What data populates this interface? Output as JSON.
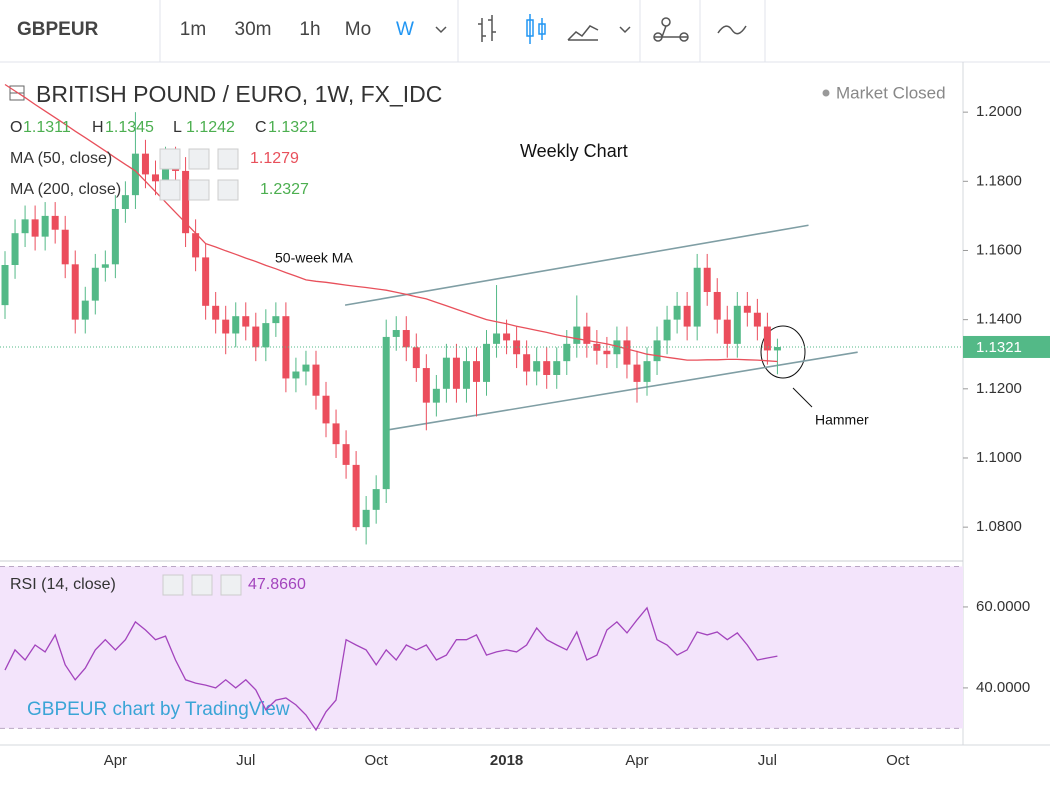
{
  "toolbar": {
    "symbol": "GBPEUR",
    "intervals": [
      "1m",
      "30m",
      "1h",
      "Mo",
      "W"
    ],
    "active_interval": 4
  },
  "chart_data": [
    {
      "type": "candlestick",
      "title": "BRITISH POUND / EURO, 1W, FX_IDC",
      "status": "Market Closed",
      "ohlc_labels": [
        "O",
        "H",
        "L",
        "C"
      ],
      "categories": [
        null,
        null,
        null,
        null,
        null,
        null,
        null,
        null,
        null,
        null,
        null,
        "Apr",
        null,
        null,
        null,
        null,
        null,
        null,
        null,
        null,
        null,
        null,
        null,
        null,
        "Jul",
        null,
        null,
        null,
        null,
        null,
        null,
        null,
        null,
        null,
        null,
        null,
        null,
        "Oct",
        null,
        null,
        null,
        null,
        null,
        null,
        null,
        null,
        null,
        null,
        null,
        null,
        "2018",
        null,
        null,
        null,
        null,
        null,
        null,
        null,
        null,
        null,
        null,
        null,
        null,
        "Apr",
        null,
        null,
        null,
        null,
        null,
        null,
        null,
        null,
        null,
        null,
        null,
        null,
        "Jul",
        null,
        null,
        null,
        null,
        null,
        null,
        null,
        null,
        null,
        null,
        null,
        null,
        "Oct",
        null,
        null,
        null,
        null,
        null,
        null
      ],
      "open": [
        1.1442,
        1.1558,
        1.165,
        1.169,
        1.164,
        1.17,
        1.166,
        1.156,
        1.14,
        1.1455,
        1.155,
        1.156,
        1.172,
        1.176,
        1.188,
        1.182,
        1.18,
        1.186,
        1.183,
        1.165,
        1.158,
        1.144,
        1.14,
        1.136,
        1.141,
        1.138,
        1.132,
        1.139,
        1.141,
        1.123,
        1.125,
        1.127,
        1.118,
        1.11,
        1.104,
        1.098,
        1.08,
        1.085,
        1.091,
        1.135,
        1.137,
        1.132,
        1.126,
        1.116,
        1.12,
        1.129,
        1.12,
        1.128,
        1.122,
        1.133,
        1.136,
        1.134,
        1.13,
        1.125,
        1.128,
        1.124,
        1.128,
        1.133,
        1.138,
        1.133,
        1.131,
        1.13,
        1.134,
        1.127,
        1.122,
        1.128,
        1.134,
        1.14,
        1.144,
        1.138,
        1.155,
        1.148,
        1.14,
        1.133,
        1.144,
        1.142,
        1.138,
        1.1311,
        null,
        null,
        null,
        null,
        null,
        null,
        null,
        null,
        null,
        null,
        null,
        null,
        null,
        null,
        null,
        null,
        null,
        null
      ],
      "high": [
        1.1598,
        1.169,
        1.173,
        1.173,
        1.174,
        1.174,
        1.17,
        1.16,
        1.1495,
        1.159,
        1.16,
        1.176,
        1.18,
        1.2,
        1.192,
        1.186,
        1.19,
        1.19,
        1.187,
        1.169,
        1.162,
        1.148,
        1.144,
        1.145,
        1.145,
        1.142,
        1.143,
        1.145,
        1.145,
        1.129,
        1.131,
        1.131,
        1.122,
        1.114,
        1.108,
        1.102,
        1.089,
        1.095,
        1.14,
        1.141,
        1.141,
        1.136,
        1.13,
        1.124,
        1.133,
        1.133,
        1.132,
        1.132,
        1.137,
        1.15,
        1.14,
        1.138,
        1.134,
        1.132,
        1.132,
        1.132,
        1.137,
        1.147,
        1.142,
        1.137,
        1.135,
        1.138,
        1.138,
        1.131,
        1.132,
        1.138,
        1.144,
        1.148,
        1.148,
        1.159,
        1.159,
        1.152,
        1.144,
        1.148,
        1.148,
        1.146,
        1.142,
        1.1345,
        null,
        null,
        null,
        null,
        null,
        null,
        null,
        null,
        null,
        null,
        null,
        null,
        null,
        null,
        null,
        null,
        null,
        null
      ],
      "low": [
        1.1402,
        1.1518,
        1.161,
        1.16,
        1.16,
        1.162,
        1.152,
        1.136,
        1.136,
        1.1415,
        1.151,
        1.152,
        1.168,
        1.172,
        1.178,
        1.176,
        1.176,
        1.179,
        1.161,
        1.154,
        1.14,
        1.136,
        1.13,
        1.132,
        1.134,
        1.128,
        1.128,
        1.135,
        1.119,
        1.119,
        1.121,
        1.114,
        1.106,
        1.1,
        1.094,
        1.079,
        1.075,
        1.081,
        1.087,
        1.131,
        1.128,
        1.122,
        1.108,
        1.112,
        1.116,
        1.116,
        1.116,
        1.112,
        1.118,
        1.129,
        1.13,
        1.126,
        1.121,
        1.121,
        1.12,
        1.12,
        1.124,
        1.129,
        1.129,
        1.127,
        1.126,
        1.126,
        1.123,
        1.116,
        1.118,
        1.124,
        1.13,
        1.136,
        1.134,
        1.134,
        1.144,
        1.136,
        1.129,
        1.129,
        1.138,
        1.134,
        1.127,
        1.1242,
        null,
        null,
        null,
        null,
        null,
        null,
        null,
        null,
        null,
        null,
        null,
        null,
        null,
        null,
        null,
        null,
        null,
        null
      ],
      "close": [
        1.1558,
        1.165,
        1.169,
        1.164,
        1.17,
        1.166,
        1.156,
        1.14,
        1.1455,
        1.155,
        1.156,
        1.172,
        1.176,
        1.188,
        1.182,
        1.18,
        1.186,
        1.183,
        1.165,
        1.158,
        1.144,
        1.14,
        1.136,
        1.141,
        1.138,
        1.132,
        1.139,
        1.141,
        1.123,
        1.125,
        1.127,
        1.118,
        1.11,
        1.104,
        1.098,
        1.08,
        1.085,
        1.091,
        1.135,
        1.137,
        1.132,
        1.126,
        1.116,
        1.12,
        1.129,
        1.12,
        1.128,
        1.122,
        1.133,
        1.136,
        1.134,
        1.13,
        1.125,
        1.128,
        1.124,
        1.128,
        1.133,
        1.138,
        1.133,
        1.131,
        1.13,
        1.134,
        1.127,
        1.122,
        1.128,
        1.134,
        1.14,
        1.144,
        1.138,
        1.155,
        1.148,
        1.14,
        1.133,
        1.144,
        1.142,
        1.138,
        1.1311,
        1.1321,
        null,
        null,
        null,
        null,
        null,
        null,
        null,
        null,
        null,
        null,
        null,
        null,
        null,
        null,
        null,
        null,
        null,
        null
      ],
      "up_color": "#53b987",
      "down_color": "#eb4d5c",
      "ylim": [
        1.0705,
        1.2145
      ],
      "yticks": [
        {
          "value": 1.08,
          "label": "1.0800"
        },
        {
          "value": 1.1,
          "label": "1.1000"
        },
        {
          "value": 1.12,
          "label": "1.1200"
        },
        {
          "value": 1.14,
          "label": "1.1400"
        },
        {
          "value": 1.16,
          "label": "1.1600"
        },
        {
          "value": 1.18,
          "label": "1.1800"
        },
        {
          "value": 1.2,
          "label": "1.2000"
        }
      ],
      "grid": false,
      "overlays": [
        {
          "name": "MA (50, close)",
          "color": "#e8505b",
          "values": [
            1.208,
            1.2061,
            1.2042,
            1.2022,
            1.2003,
            1.1984,
            1.1965,
            1.1945,
            1.1926,
            1.1907,
            1.1888,
            1.1868,
            1.1849,
            1.183,
            1.18,
            1.177,
            1.174,
            1.171,
            1.168,
            1.165,
            1.162,
            1.161,
            1.1599,
            1.1589,
            1.1578,
            1.1568,
            1.1557,
            1.1547,
            1.1536,
            1.1526,
            1.1515,
            1.1511,
            1.1508,
            1.1504,
            1.15,
            1.1496,
            1.1493,
            1.1489,
            1.1485,
            1.1479,
            1.1473,
            1.1466,
            1.146,
            1.145,
            1.144,
            1.143,
            1.142,
            1.141,
            1.14,
            1.1394,
            1.1388,
            1.1381,
            1.1375,
            1.1369,
            1.1363,
            1.1356,
            1.135,
            1.1345,
            1.134,
            1.1335,
            1.133,
            1.1323,
            1.1315,
            1.1308,
            1.13,
            1.1296,
            1.1291,
            1.1287,
            1.1283,
            1.1283,
            1.1284,
            1.1284,
            1.1285,
            1.1285,
            1.1284,
            1.1283,
            1.1281,
            1.1279,
            null,
            null,
            null,
            null,
            null,
            null,
            null,
            null,
            null,
            null,
            null,
            null,
            null,
            null,
            null,
            null,
            null,
            null
          ]
        }
      ],
      "indicators": [
        {
          "name": "MA (200, close)",
          "color": "#4caf50",
          "value": 1.2327
        }
      ],
      "annotations": [
        "Weekly Chart",
        "50-week MA",
        "Hammer"
      ],
      "trendlines": [
        {
          "x": [
            33.9,
            80.1
          ],
          "y": [
            1.1442,
            1.1673
          ]
        },
        {
          "x": [
            37.9,
            85.0
          ],
          "y": [
            1.108,
            1.1306
          ]
        }
      ],
      "trendline_color": "#7f9ea4"
    },
    {
      "type": "line",
      "series": [
        {
          "name": "RSI (14, close)",
          "color": "#a344bd",
          "values": [
            44.4,
            49.4,
            46.9,
            50.6,
            48.9,
            53.1,
            45.7,
            42.0,
            44.9,
            49.4,
            51.9,
            49.4,
            51.9,
            56.3,
            54.3,
            51.9,
            52.8,
            46.9,
            42.0,
            41.2,
            40.7,
            40.0,
            42.0,
            40.0,
            42.0,
            39.5,
            34.6,
            37.0,
            37.5,
            35.8,
            33.3,
            29.6,
            34.1,
            37.0,
            51.9,
            50.6,
            49.4,
            45.7,
            49.4,
            46.9,
            50.6,
            49.4,
            50.6,
            46.9,
            48.1,
            51.9,
            51.9,
            53.1,
            48.1,
            48.9,
            49.4,
            48.9,
            50.6,
            54.8,
            51.9,
            50.6,
            49.4,
            53.8,
            46.9,
            48.1,
            54.3,
            56.3,
            53.6,
            56.8,
            59.8,
            51.9,
            50.6,
            48.1,
            49.4,
            53.8,
            53.1,
            53.8,
            51.9,
            53.6,
            50.6,
            46.9,
            47.4,
            47.866
          ],
          "value_labels": [
            null,
            null,
            null,
            null,
            null,
            null,
            null,
            null,
            null,
            null,
            null,
            null,
            null,
            null,
            null,
            null,
            null,
            null,
            null,
            null,
            null,
            null,
            null,
            null,
            null,
            null,
            null,
            null,
            null,
            null,
            null,
            null,
            null,
            null,
            null,
            null,
            null,
            null,
            null,
            null,
            null,
            null,
            null,
            null,
            null,
            null,
            null,
            null,
            null,
            null,
            null,
            null,
            null,
            null,
            null,
            null,
            null,
            null,
            null,
            null,
            null,
            null,
            null,
            null,
            null,
            null,
            null,
            null,
            null,
            null,
            null,
            null,
            null,
            null,
            null,
            null,
            null,
            "47.8660"
          ]
        }
      ],
      "ylim": [
        25.9,
        71.1
      ],
      "yticks": [
        {
          "value": 40,
          "label": "40.0000"
        },
        {
          "value": 60,
          "label": "60.0000"
        }
      ],
      "bands": [
        30,
        70
      ],
      "band_color": "#f3e4fb",
      "watermark": "GBPEUR chart by TradingView"
    }
  ]
}
